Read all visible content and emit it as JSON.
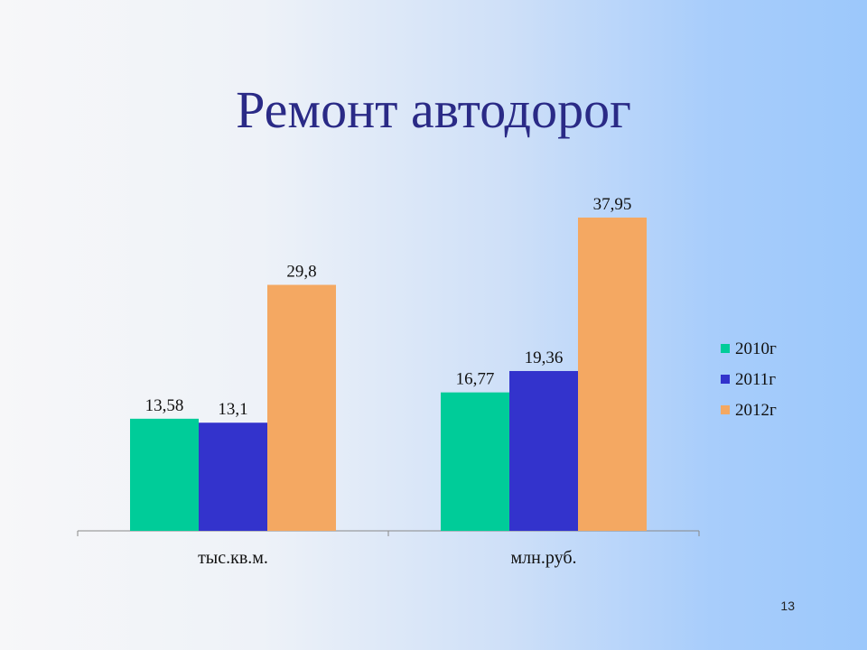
{
  "slide": {
    "title": "Ремонт автодорог",
    "page_number": "13"
  },
  "chart_data": {
    "type": "bar",
    "categories": [
      "тыс.кв.м.",
      "млн.руб."
    ],
    "series": [
      {
        "name": "2010г",
        "values": [
          13.58,
          16.77
        ],
        "labels": [
          "13,58",
          "16,77"
        ],
        "color": "#00cc99"
      },
      {
        "name": "2011г",
        "values": [
          13.1,
          19.36
        ],
        "labels": [
          "13,1",
          "19,36"
        ],
        "color": "#3333cc"
      },
      {
        "name": "2012г",
        "values": [
          29.8,
          37.95
        ],
        "labels": [
          "29,8",
          "37,95"
        ],
        "color": "#f4a862"
      }
    ],
    "ylim": [
      0,
      40
    ],
    "grid": false,
    "legend_position": "right"
  }
}
